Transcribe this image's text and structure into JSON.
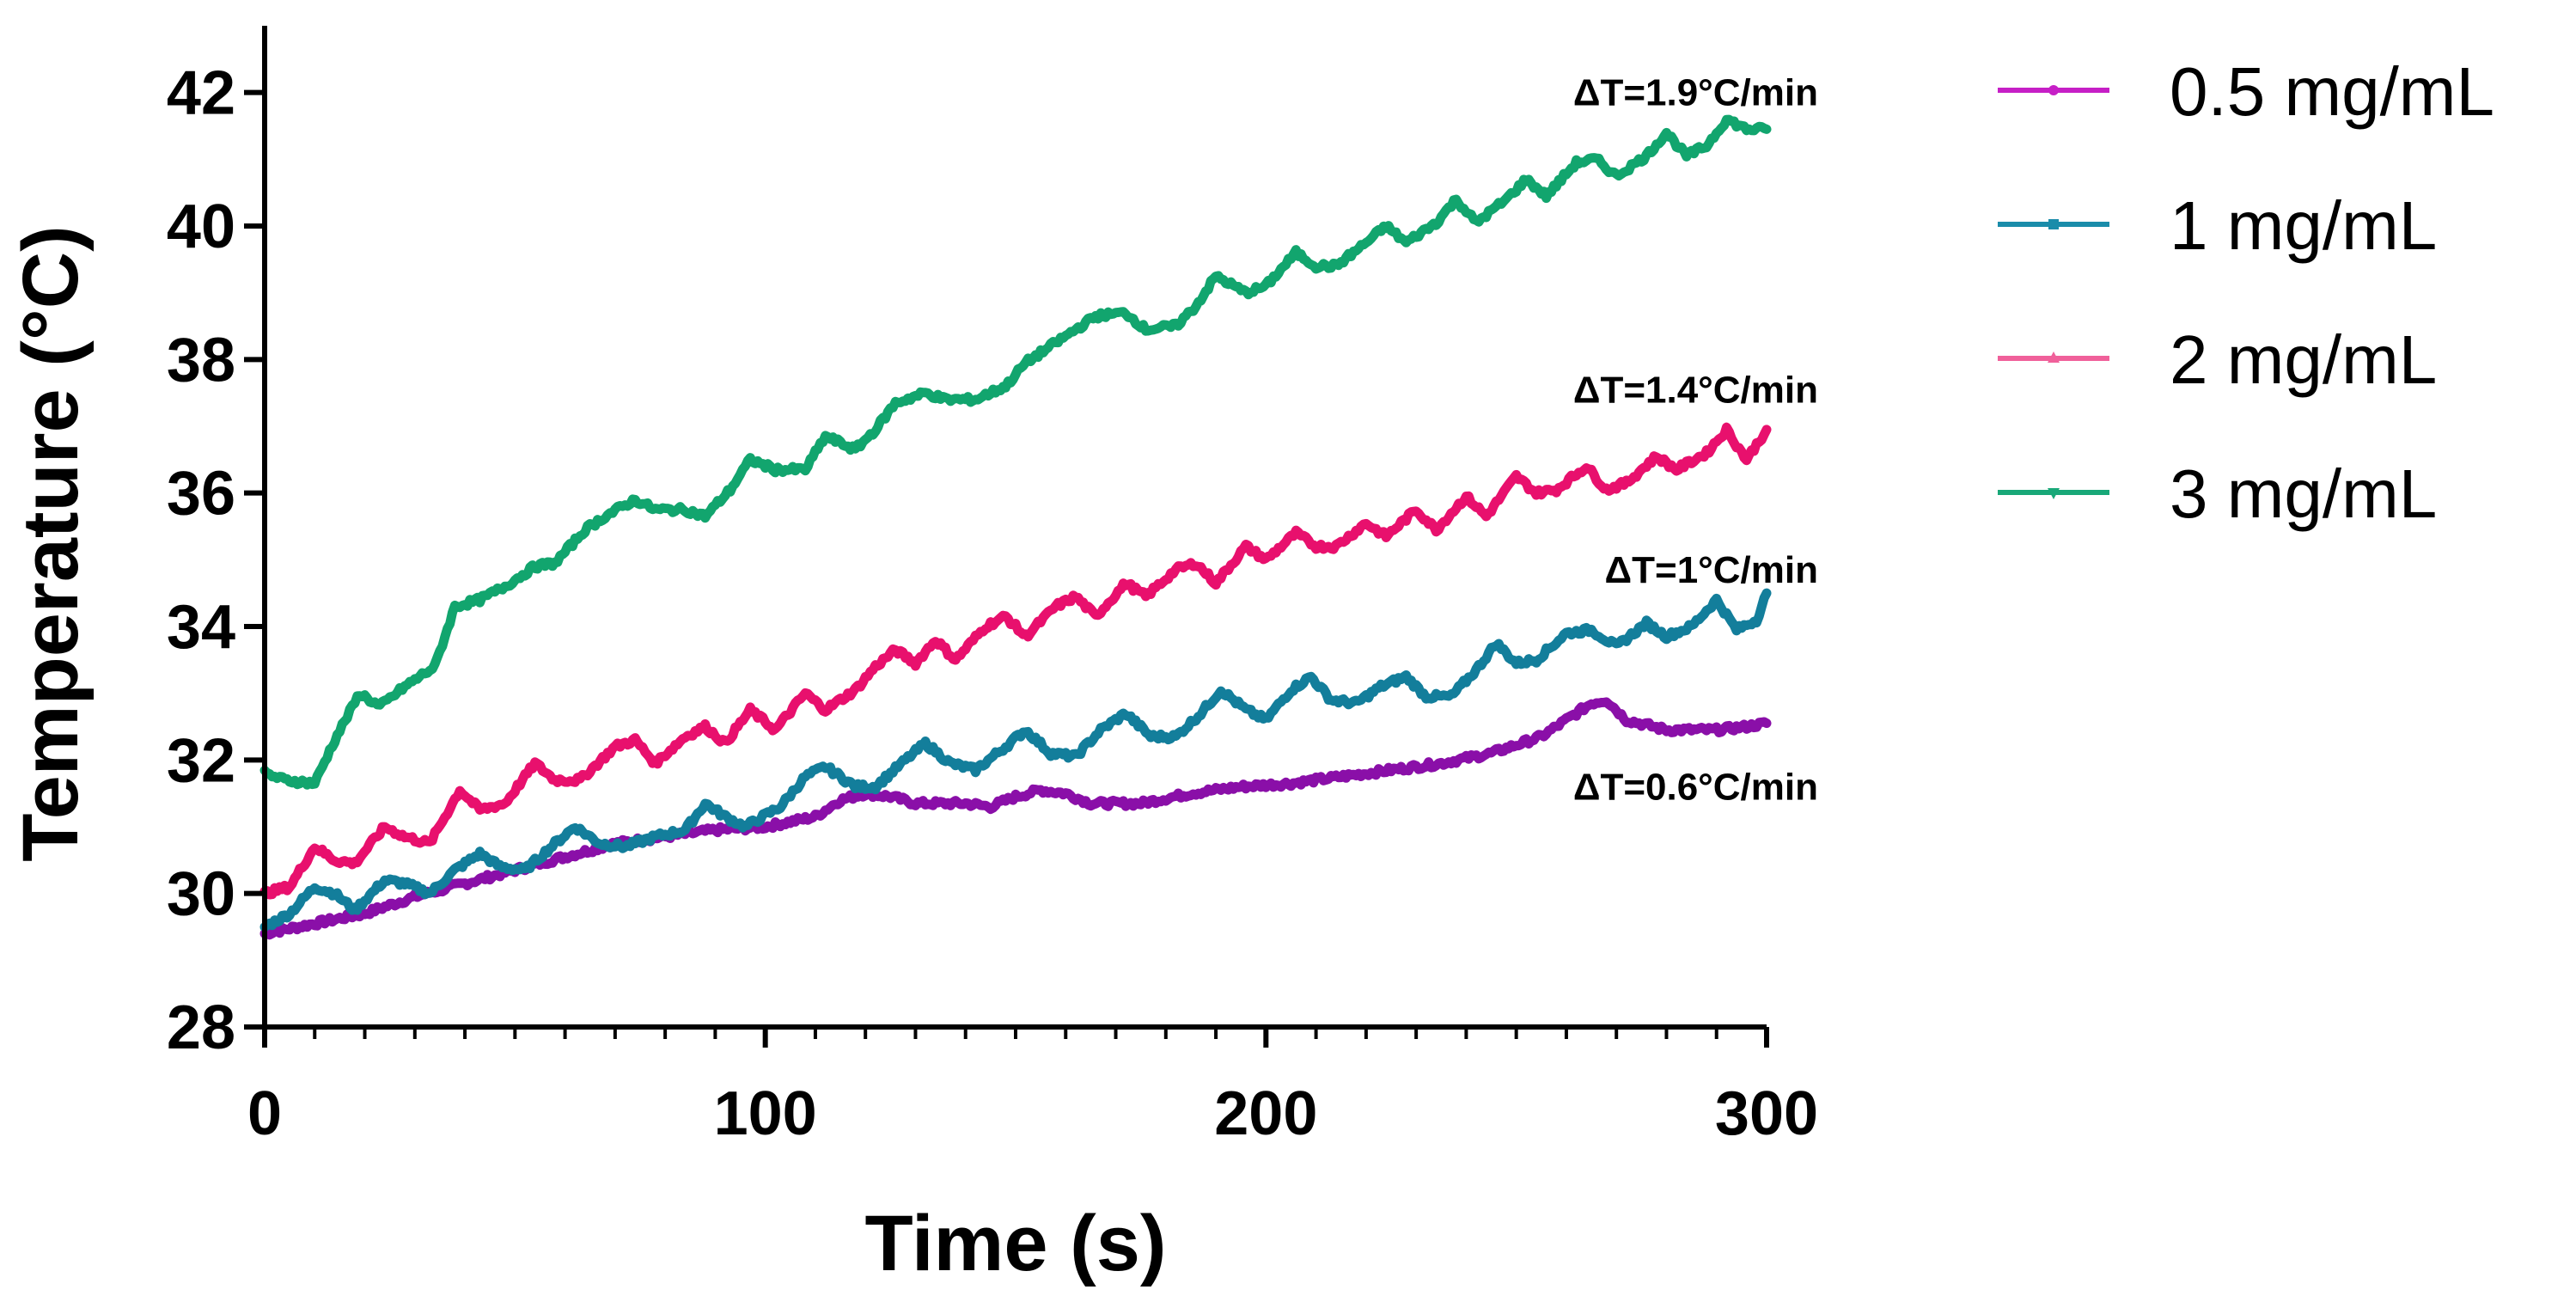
{
  "chart_data": {
    "type": "line",
    "title": "",
    "xlabel": "Time (s)",
    "ylabel": "Temperature (°C)",
    "xlim": [
      0,
      300
    ],
    "ylim": [
      28,
      43
    ],
    "xticks": [
      0,
      100,
      200,
      300
    ],
    "yticks": [
      28,
      30,
      32,
      34,
      36,
      38,
      40,
      42
    ],
    "x_minor_step": 10,
    "grid": false,
    "legend_position": "right",
    "series": [
      {
        "name": "0.5 mg/mL",
        "color": "#8a0fa8",
        "legend_color": "#c61fc6",
        "marker": "circle",
        "points": [
          [
            0,
            29.4
          ],
          [
            10,
            29.55
          ],
          [
            20,
            29.7
          ],
          [
            30,
            29.95
          ],
          [
            40,
            30.15
          ],
          [
            50,
            30.35
          ],
          [
            60,
            30.55
          ],
          [
            70,
            30.75
          ],
          [
            80,
            30.85
          ],
          [
            90,
            30.95
          ],
          [
            100,
            31.0
          ],
          [
            110,
            31.15
          ],
          [
            115,
            31.4
          ],
          [
            120,
            31.5
          ],
          [
            125,
            31.45
          ],
          [
            130,
            31.35
          ],
          [
            140,
            31.35
          ],
          [
            145,
            31.3
          ],
          [
            150,
            31.45
          ],
          [
            155,
            31.55
          ],
          [
            160,
            31.5
          ],
          [
            165,
            31.35
          ],
          [
            175,
            31.35
          ],
          [
            185,
            31.5
          ],
          [
            195,
            31.6
          ],
          [
            205,
            31.65
          ],
          [
            215,
            31.75
          ],
          [
            225,
            31.85
          ],
          [
            235,
            31.95
          ],
          [
            245,
            32.1
          ],
          [
            255,
            32.35
          ],
          [
            262,
            32.7
          ],
          [
            265,
            32.85
          ],
          [
            268,
            32.9
          ],
          [
            272,
            32.6
          ],
          [
            280,
            32.45
          ],
          [
            290,
            32.45
          ],
          [
            296,
            32.5
          ],
          [
            300,
            32.55
          ]
        ]
      },
      {
        "name": "1 mg/mL",
        "color": "#137e9b",
        "legend_color": "#1a8caa",
        "marker": "square",
        "points": [
          [
            0,
            29.5
          ],
          [
            5,
            29.7
          ],
          [
            10,
            30.1
          ],
          [
            14,
            30.0
          ],
          [
            18,
            29.75
          ],
          [
            24,
            30.2
          ],
          [
            28,
            30.15
          ],
          [
            33,
            30.0
          ],
          [
            38,
            30.35
          ],
          [
            43,
            30.6
          ],
          [
            47,
            30.4
          ],
          [
            52,
            30.35
          ],
          [
            58,
            30.75
          ],
          [
            62,
            31.0
          ],
          [
            67,
            30.75
          ],
          [
            72,
            30.7
          ],
          [
            78,
            30.85
          ],
          [
            84,
            30.95
          ],
          [
            88,
            31.35
          ],
          [
            92,
            31.15
          ],
          [
            96,
            31.0
          ],
          [
            103,
            31.3
          ],
          [
            108,
            31.75
          ],
          [
            112,
            31.9
          ],
          [
            118,
            31.6
          ],
          [
            122,
            31.6
          ],
          [
            128,
            32.0
          ],
          [
            132,
            32.25
          ],
          [
            137,
            31.95
          ],
          [
            142,
            31.85
          ],
          [
            148,
            32.2
          ],
          [
            152,
            32.45
          ],
          [
            157,
            32.1
          ],
          [
            162,
            32.05
          ],
          [
            167,
            32.45
          ],
          [
            172,
            32.7
          ],
          [
            177,
            32.35
          ],
          [
            182,
            32.35
          ],
          [
            187,
            32.7
          ],
          [
            191,
            33.05
          ],
          [
            196,
            32.75
          ],
          [
            200,
            32.6
          ],
          [
            205,
            33.05
          ],
          [
            209,
            33.25
          ],
          [
            213,
            32.9
          ],
          [
            218,
            32.85
          ],
          [
            223,
            33.1
          ],
          [
            228,
            33.25
          ],
          [
            232,
            32.95
          ],
          [
            237,
            32.95
          ],
          [
            242,
            33.35
          ],
          [
            246,
            33.75
          ],
          [
            250,
            33.45
          ],
          [
            254,
            33.5
          ],
          [
            260,
            33.9
          ],
          [
            265,
            33.95
          ],
          [
            270,
            33.7
          ],
          [
            276,
            34.05
          ],
          [
            280,
            33.85
          ],
          [
            285,
            34.0
          ],
          [
            290,
            34.4
          ],
          [
            294,
            33.95
          ],
          [
            298,
            34.1
          ],
          [
            300,
            34.5
          ]
        ]
      },
      {
        "name": "2 mg/mL",
        "color": "#e8106d",
        "legend_color": "#f0609a",
        "marker": "triangle",
        "points": [
          [
            0,
            30.0
          ],
          [
            5,
            30.1
          ],
          [
            10,
            30.7
          ],
          [
            14,
            30.5
          ],
          [
            18,
            30.45
          ],
          [
            24,
            31.0
          ],
          [
            28,
            30.85
          ],
          [
            33,
            30.75
          ],
          [
            39,
            31.55
          ],
          [
            43,
            31.25
          ],
          [
            48,
            31.35
          ],
          [
            54,
            31.95
          ],
          [
            58,
            31.7
          ],
          [
            63,
            31.7
          ],
          [
            70,
            32.2
          ],
          [
            74,
            32.3
          ],
          [
            78,
            31.95
          ],
          [
            84,
            32.35
          ],
          [
            88,
            32.5
          ],
          [
            92,
            32.25
          ],
          [
            97,
            32.75
          ],
          [
            102,
            32.45
          ],
          [
            108,
            33.0
          ],
          [
            112,
            32.75
          ],
          [
            118,
            33.05
          ],
          [
            122,
            33.4
          ],
          [
            126,
            33.65
          ],
          [
            130,
            33.45
          ],
          [
            134,
            33.8
          ],
          [
            138,
            33.5
          ],
          [
            144,
            34.0
          ],
          [
            148,
            34.15
          ],
          [
            152,
            33.85
          ],
          [
            158,
            34.3
          ],
          [
            162,
            34.45
          ],
          [
            166,
            34.15
          ],
          [
            172,
            34.65
          ],
          [
            176,
            34.45
          ],
          [
            182,
            34.85
          ],
          [
            186,
            34.95
          ],
          [
            190,
            34.65
          ],
          [
            196,
            35.2
          ],
          [
            200,
            35.0
          ],
          [
            206,
            35.4
          ],
          [
            210,
            35.2
          ],
          [
            214,
            35.2
          ],
          [
            220,
            35.55
          ],
          [
            224,
            35.35
          ],
          [
            230,
            35.75
          ],
          [
            234,
            35.45
          ],
          [
            240,
            35.95
          ],
          [
            244,
            35.65
          ],
          [
            250,
            36.25
          ],
          [
            254,
            36.0
          ],
          [
            258,
            36.05
          ],
          [
            264,
            36.4
          ],
          [
            268,
            36.05
          ],
          [
            272,
            36.15
          ],
          [
            278,
            36.55
          ],
          [
            282,
            36.35
          ],
          [
            288,
            36.6
          ],
          [
            292,
            36.95
          ],
          [
            296,
            36.5
          ],
          [
            300,
            36.95
          ]
        ]
      },
      {
        "name": "3 mg/mL",
        "color": "#12a56e",
        "legend_color": "#18a878",
        "marker": "inverted-triangle",
        "points": [
          [
            0,
            31.8
          ],
          [
            4,
            31.7
          ],
          [
            10,
            31.65
          ],
          [
            14,
            32.3
          ],
          [
            19,
            33.0
          ],
          [
            23,
            32.8
          ],
          [
            28,
            33.1
          ],
          [
            34,
            33.4
          ],
          [
            38,
            34.3
          ],
          [
            43,
            34.4
          ],
          [
            48,
            34.6
          ],
          [
            54,
            34.9
          ],
          [
            58,
            34.95
          ],
          [
            64,
            35.45
          ],
          [
            68,
            35.65
          ],
          [
            74,
            35.9
          ],
          [
            78,
            35.75
          ],
          [
            84,
            35.75
          ],
          [
            88,
            35.65
          ],
          [
            93,
            36.05
          ],
          [
            97,
            36.5
          ],
          [
            102,
            36.35
          ],
          [
            108,
            36.35
          ],
          [
            112,
            36.85
          ],
          [
            118,
            36.65
          ],
          [
            122,
            36.95
          ],
          [
            126,
            37.35
          ],
          [
            132,
            37.5
          ],
          [
            136,
            37.4
          ],
          [
            142,
            37.4
          ],
          [
            148,
            37.6
          ],
          [
            152,
            37.95
          ],
          [
            158,
            38.25
          ],
          [
            162,
            38.45
          ],
          [
            166,
            38.65
          ],
          [
            172,
            38.7
          ],
          [
            176,
            38.45
          ],
          [
            182,
            38.5
          ],
          [
            186,
            38.8
          ],
          [
            190,
            39.25
          ],
          [
            196,
            39.0
          ],
          [
            200,
            39.1
          ],
          [
            206,
            39.6
          ],
          [
            210,
            39.4
          ],
          [
            214,
            39.4
          ],
          [
            220,
            39.75
          ],
          [
            224,
            40.0
          ],
          [
            228,
            39.75
          ],
          [
            234,
            40.05
          ],
          [
            238,
            40.4
          ],
          [
            242,
            40.05
          ],
          [
            248,
            40.4
          ],
          [
            252,
            40.7
          ],
          [
            256,
            40.45
          ],
          [
            262,
            40.95
          ],
          [
            266,
            41.0
          ],
          [
            270,
            40.75
          ],
          [
            276,
            41.05
          ],
          [
            280,
            41.4
          ],
          [
            284,
            41.05
          ],
          [
            288,
            41.2
          ],
          [
            292,
            41.6
          ],
          [
            296,
            41.45
          ],
          [
            300,
            41.45
          ]
        ]
      }
    ],
    "annotations": [
      {
        "text": "ΔT=1.9°C/min",
        "x": 300,
        "y": 42.0
      },
      {
        "text": "ΔT=1.4°C/min",
        "x": 300,
        "y": 37.55
      },
      {
        "text": "ΔT=1°C/min",
        "x": 300,
        "y": 34.85
      },
      {
        "text": "ΔT=0.6°C/min",
        "x": 300,
        "y": 31.6
      }
    ]
  }
}
